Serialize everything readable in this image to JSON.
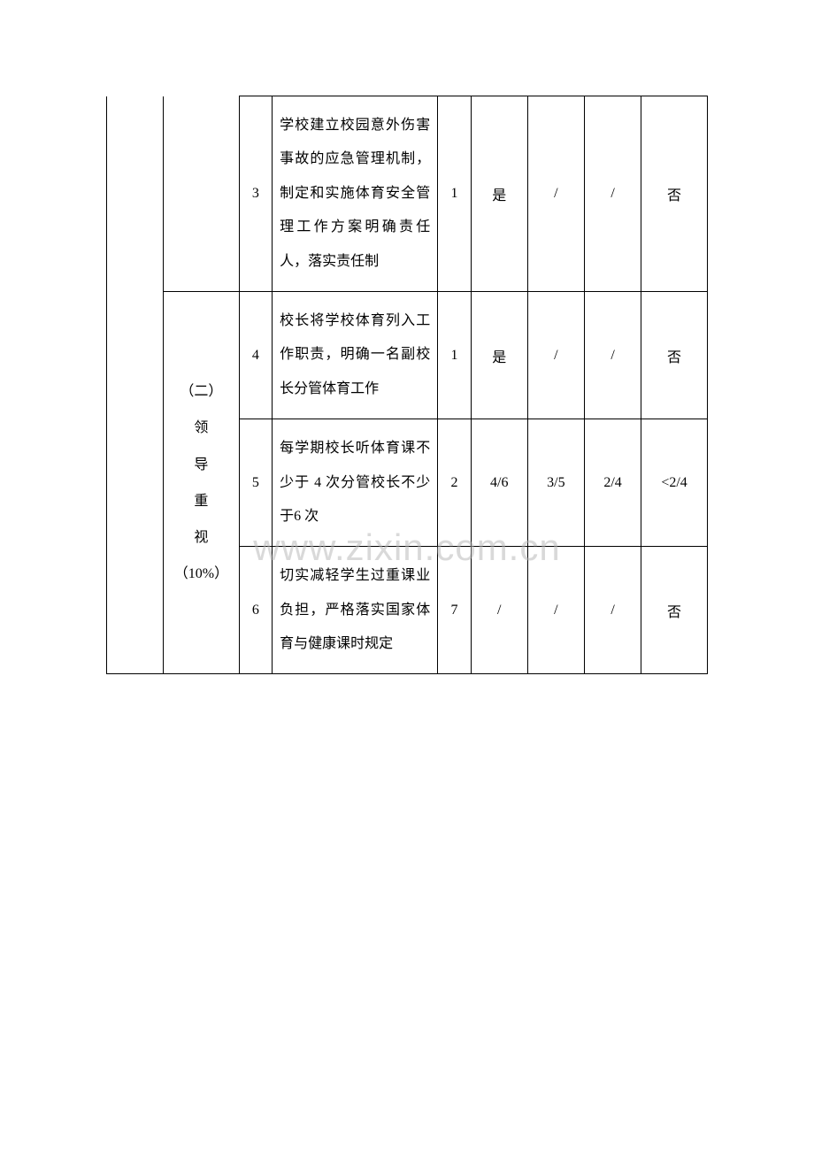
{
  "watermark": "www.zixin.com.cn",
  "table": {
    "border_color": "#000000",
    "background_color": "#ffffff",
    "text_color": "#000000",
    "font_size": 16,
    "font_family": "SimSun",
    "rows": [
      {
        "col3": "3",
        "col4": "学校建立校园意外伤害事故的应急管理机制，制定和实施体育安全管理工作方案明确责任人，落实责任制",
        "col5": "1",
        "col6": "是",
        "col7": "/",
        "col8": "/",
        "col9": "否"
      },
      {
        "col3": "4",
        "col4": "校长将学校体育列入工作职责，明确一名副校长分管体育工作",
        "col5": "1",
        "col6": "是",
        "col7": "/",
        "col8": "/",
        "col9": "否"
      },
      {
        "col3": "5",
        "col4": "每学期校长听体育课不少于 4 次分管校长不少于6 次",
        "col5": "2",
        "col6": "4/6",
        "col7": "3/5",
        "col8": "2/4",
        "col9": "<2/4"
      },
      {
        "col3": "6",
        "col4": "切实减轻学生过重课业负担，严格落实国家体育与健康课时规定",
        "col5": "7",
        "col6": "/",
        "col7": "/",
        "col8": "/",
        "col9": "否"
      }
    ],
    "section_label": {
      "line1": "（二）",
      "line2": "领",
      "line3": "导",
      "line4": "重",
      "line5": "视",
      "line6": "（10%）"
    }
  }
}
